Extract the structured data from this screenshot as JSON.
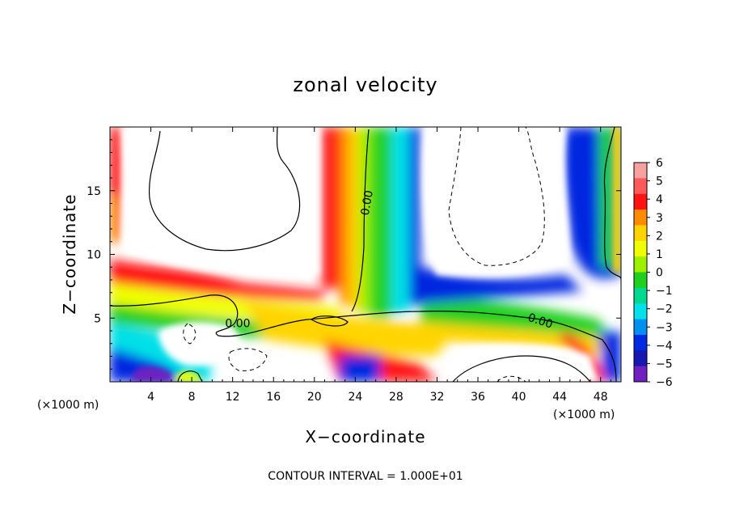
{
  "chart_data": {
    "type": "heatmap",
    "title": "zonal velocity",
    "xlabel": "X−coordinate",
    "ylabel": "Z−coordinate",
    "x_unit_left": "(×1000 m)",
    "x_unit_right": "(×1000 m)",
    "xlim": [
      0,
      50
    ],
    "ylim": [
      0,
      20
    ],
    "x_ticks": [
      4,
      8,
      12,
      16,
      20,
      24,
      28,
      32,
      36,
      40,
      44,
      48
    ],
    "x_tick_labels": [
      "4",
      "8",
      "12",
      "16",
      "20",
      "24",
      "28",
      "32",
      "36",
      "40",
      "44",
      "48"
    ],
    "y_ticks": [
      5,
      10,
      15
    ],
    "y_tick_labels": [
      "5",
      "10",
      "15"
    ],
    "colorbar": {
      "min": -6,
      "max": 6,
      "tick_labels": [
        "6",
        "5",
        "4",
        "3",
        "2",
        "1",
        "0",
        "−1",
        "−2",
        "−3",
        "−4",
        "−5",
        "−6"
      ],
      "colors": [
        "#f7a0a0",
        "#ff5a5a",
        "#ff1414",
        "#ff8c00",
        "#ffd400",
        "#f0ff00",
        "#9cf000",
        "#20d020",
        "#00d890",
        "#00e0e8",
        "#0090f0",
        "#0028e0",
        "#1818b0",
        "#7020c0"
      ]
    },
    "contour_labels": [
      {
        "x": 25.5,
        "y": 14.0,
        "text": "0.00"
      },
      {
        "x": 12.5,
        "y": 4.3,
        "text": "0.00"
      },
      {
        "x": 42.0,
        "y": 4.5,
        "text": "0.00"
      }
    ],
    "contour_interval_text": "CONTOUR INTERVAL = 1.000E+01"
  }
}
